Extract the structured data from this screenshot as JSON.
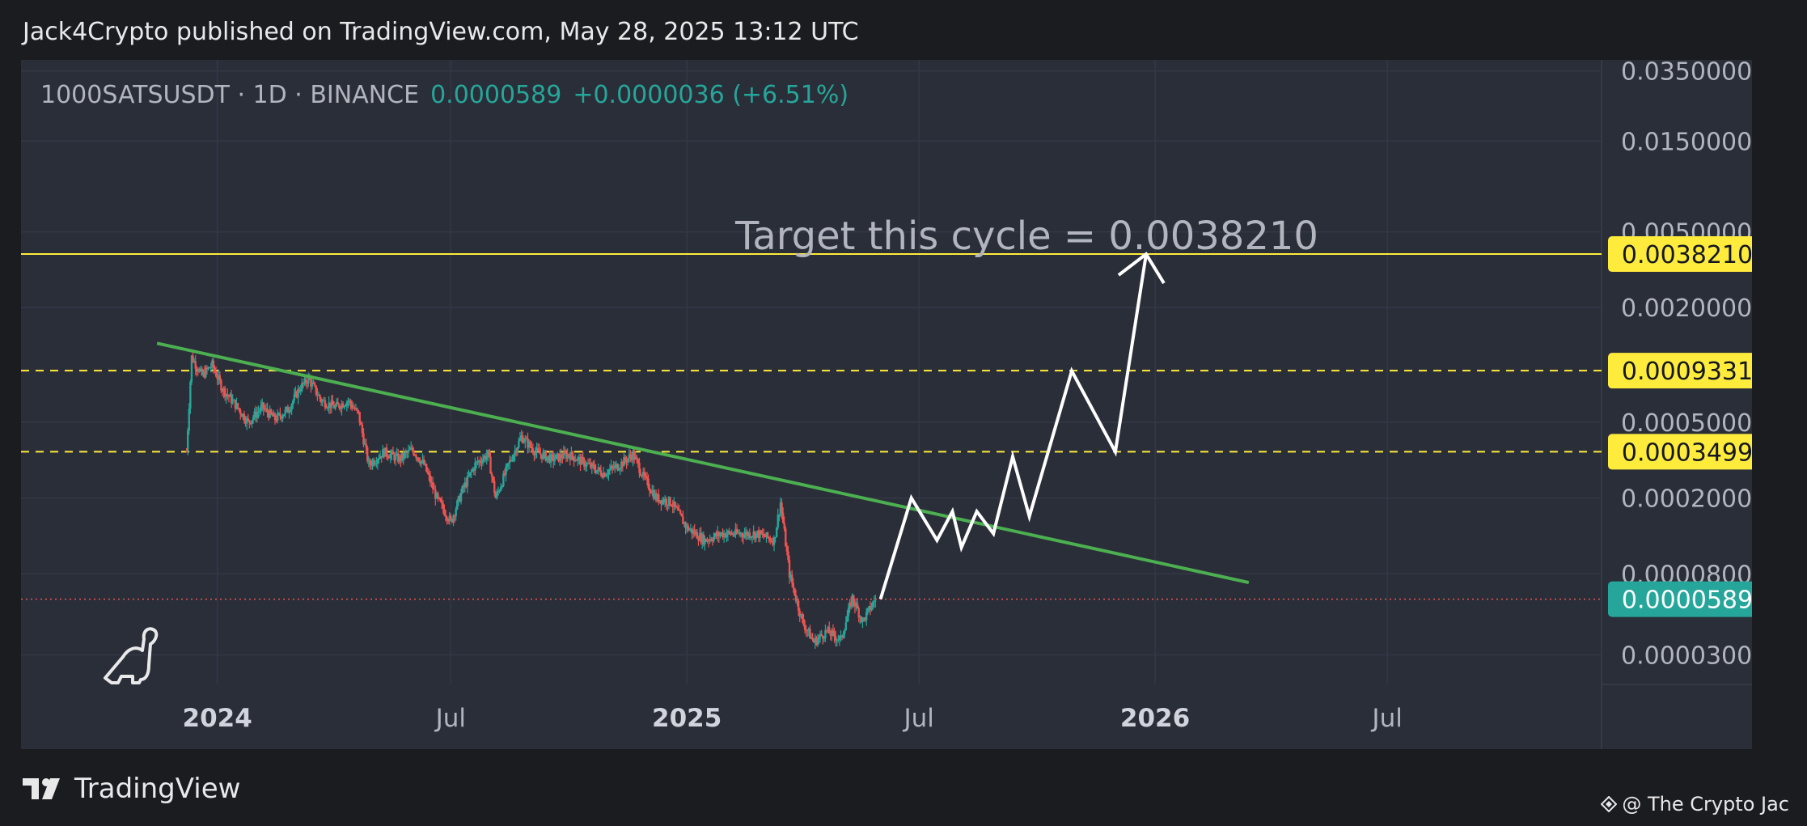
{
  "header": {
    "published_line": "Jack4Crypto published on TradingView.com, May 28, 2025 13:12 UTC"
  },
  "symbol": {
    "name_line": "1000SATSUSDT · 1D · BINANCE",
    "price": "0.0000589",
    "change": "+0.0000036 (+6.51%)"
  },
  "footer": {
    "brand": "TradingView",
    "credit": "@ The Crypto Jac"
  },
  "colors": {
    "up": "#26a69a",
    "down": "#ef5350",
    "trendline": "#4caf50",
    "target_line": "#ffeb3b",
    "projection": "#ffffff",
    "panel_bg": "#2a2e39",
    "page_bg": "#1b1c1f"
  },
  "chart_data": {
    "type": "candlestick",
    "scale": "log",
    "xlim": [
      "2023-08-01",
      "2026-12-15"
    ],
    "ylim": [
      2.1e-05,
      0.04
    ],
    "x_ticks": [
      {
        "label": "2024",
        "date": "2024-01-01",
        "bold": true
      },
      {
        "label": "Jul",
        "date": "2024-07-01",
        "bold": false
      },
      {
        "label": "2025",
        "date": "2025-01-01",
        "bold": true
      },
      {
        "label": "Jul",
        "date": "2025-07-01",
        "bold": false
      },
      {
        "label": "2026",
        "date": "2026-01-01",
        "bold": true
      },
      {
        "label": "Jul",
        "date": "2026-07-01",
        "bold": false
      }
    ],
    "y_ticks": [
      {
        "label": "0.0350000",
        "value": 0.035
      },
      {
        "label": "0.0150000",
        "value": 0.015
      },
      {
        "label": "0.0050000",
        "value": 0.005
      },
      {
        "label": "0.0020000",
        "value": 0.002
      },
      {
        "label": "0.0005000",
        "value": 0.0005
      },
      {
        "label": "0.0002000",
        "value": 0.0002
      },
      {
        "label": "0.0000800",
        "value": 8e-05
      },
      {
        "label": "0.0000300",
        "value": 3e-05
      }
    ],
    "price_series": [
      {
        "date": "2023-12-08",
        "close": 0.00035
      },
      {
        "date": "2023-12-12",
        "close": 0.0011
      },
      {
        "date": "2023-12-20",
        "close": 0.00088
      },
      {
        "date": "2023-12-28",
        "close": 0.001
      },
      {
        "date": "2024-01-05",
        "close": 0.00075
      },
      {
        "date": "2024-01-15",
        "close": 0.00062
      },
      {
        "date": "2024-01-25",
        "close": 0.0005
      },
      {
        "date": "2024-02-05",
        "close": 0.0006
      },
      {
        "date": "2024-02-15",
        "close": 0.00052
      },
      {
        "date": "2024-02-25",
        "close": 0.00058
      },
      {
        "date": "2024-03-05",
        "close": 0.00075
      },
      {
        "date": "2024-03-12",
        "close": 0.00085
      },
      {
        "date": "2024-03-22",
        "close": 0.00065
      },
      {
        "date": "2024-04-02",
        "close": 0.0006
      },
      {
        "date": "2024-04-12",
        "close": 0.00065
      },
      {
        "date": "2024-04-20",
        "close": 0.00055
      },
      {
        "date": "2024-04-28",
        "close": 0.0003
      },
      {
        "date": "2024-05-10",
        "close": 0.00035
      },
      {
        "date": "2024-05-22",
        "close": 0.00032
      },
      {
        "date": "2024-06-01",
        "close": 0.00036
      },
      {
        "date": "2024-06-10",
        "close": 0.0003
      },
      {
        "date": "2024-06-20",
        "close": 0.0002
      },
      {
        "date": "2024-07-01",
        "close": 0.00015
      },
      {
        "date": "2024-07-10",
        "close": 0.00022
      },
      {
        "date": "2024-07-20",
        "close": 0.0003
      },
      {
        "date": "2024-07-30",
        "close": 0.00034
      },
      {
        "date": "2024-08-05",
        "close": 0.0002
      },
      {
        "date": "2024-08-15",
        "close": 0.0003
      },
      {
        "date": "2024-08-25",
        "close": 0.00042
      },
      {
        "date": "2024-09-05",
        "close": 0.00035
      },
      {
        "date": "2024-09-18",
        "close": 0.00032
      },
      {
        "date": "2024-10-01",
        "close": 0.00034
      },
      {
        "date": "2024-10-15",
        "close": 0.0003
      },
      {
        "date": "2024-10-28",
        "close": 0.00027
      },
      {
        "date": "2024-11-10",
        "close": 0.0003
      },
      {
        "date": "2024-11-20",
        "close": 0.00034
      },
      {
        "date": "2024-11-28",
        "close": 0.00026
      },
      {
        "date": "2024-12-08",
        "close": 0.0002
      },
      {
        "date": "2024-12-20",
        "close": 0.00019
      },
      {
        "date": "2025-01-01",
        "close": 0.00014
      },
      {
        "date": "2025-01-15",
        "close": 0.00012
      },
      {
        "date": "2025-01-28",
        "close": 0.00013
      },
      {
        "date": "2025-02-10",
        "close": 0.00013
      },
      {
        "date": "2025-02-25",
        "close": 0.00013
      },
      {
        "date": "2025-03-10",
        "close": 0.00012
      },
      {
        "date": "2025-03-15",
        "close": 0.00019
      },
      {
        "date": "2025-03-22",
        "close": 8e-05
      },
      {
        "date": "2025-04-01",
        "close": 4.5e-05
      },
      {
        "date": "2025-04-10",
        "close": 3.5e-05
      },
      {
        "date": "2025-04-20",
        "close": 4e-05
      },
      {
        "date": "2025-05-01",
        "close": 3.6e-05
      },
      {
        "date": "2025-05-10",
        "close": 6e-05
      },
      {
        "date": "2025-05-18",
        "close": 4.5e-05
      },
      {
        "date": "2025-05-28",
        "close": 5.89e-05
      }
    ],
    "trendline": [
      {
        "date": "2023-11-15",
        "value": 0.0013
      },
      {
        "date": "2026-03-15",
        "value": 7.2e-05
      }
    ],
    "projection": [
      {
        "date": "2025-06-01",
        "value": 5.89e-05
      },
      {
        "date": "2025-06-25",
        "value": 0.0002
      },
      {
        "date": "2025-07-15",
        "value": 0.00012
      },
      {
        "date": "2025-07-27",
        "value": 0.00017
      },
      {
        "date": "2025-08-03",
        "value": 0.00011
      },
      {
        "date": "2025-08-15",
        "value": 0.00017
      },
      {
        "date": "2025-08-28",
        "value": 0.00013
      },
      {
        "date": "2025-09-12",
        "value": 0.00033
      },
      {
        "date": "2025-09-25",
        "value": 0.00016
      },
      {
        "date": "2025-10-28",
        "value": 0.00093
      },
      {
        "date": "2025-12-01",
        "value": 0.00035
      },
      {
        "date": "2025-12-25",
        "value": 0.00382
      }
    ],
    "levels": [
      {
        "value": 0.003821,
        "label": "0.0038210",
        "style": "solid"
      },
      {
        "value": 0.0009331,
        "label": "0.0009331",
        "style": "dashed"
      },
      {
        "value": 0.0003499,
        "label": "0.0003499",
        "style": "dashed"
      }
    ],
    "last_price": {
      "value": 5.89e-05,
      "label": "0.0000589"
    },
    "annotation": "Target this cycle = 0.0038210"
  }
}
